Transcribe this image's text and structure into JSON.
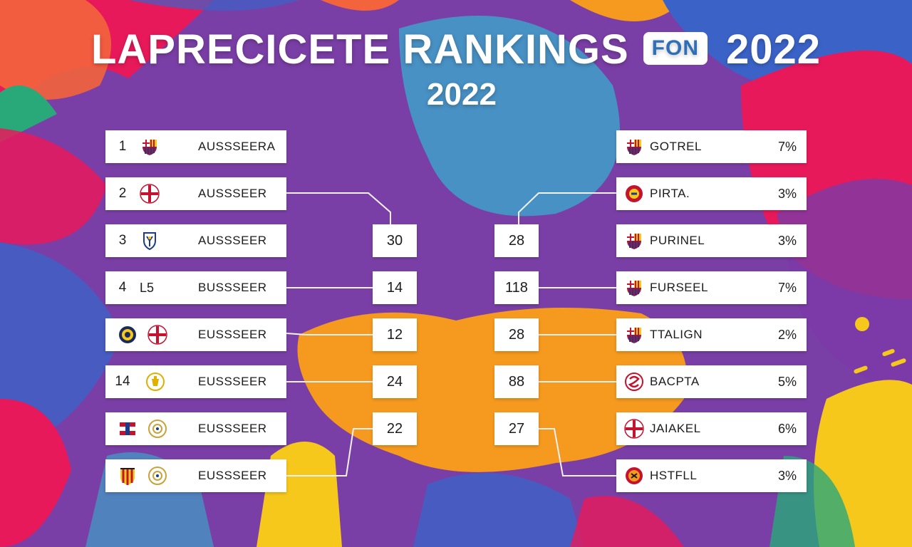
{
  "title": {
    "main": "LAPRECICETE RANKINGS",
    "badge": "FON",
    "year": "2022"
  },
  "subtitle": "2022",
  "colors": {
    "background": "#7a3fa6",
    "panel": "#ffffff",
    "text": "#1c1c1c",
    "accent_orange": "#f59a1e",
    "accent_pink": "#e8195a",
    "accent_blue": "#3b63c7",
    "accent_yellow": "#f7c81c"
  },
  "left_rows": [
    {
      "rank": "1",
      "abbr": "",
      "crest": "barca-crest-icon",
      "name": "AUSSSEERA"
    },
    {
      "rank": "2",
      "abbr": "",
      "crest": "red-cross-crest-icon",
      "name": "AUSSSEER"
    },
    {
      "rank": "3",
      "abbr": "",
      "crest": "blue-shield-crest-icon",
      "name": "AUSSSEER"
    },
    {
      "rank": "4",
      "abbr": "L5",
      "crest": "",
      "name": "BUSSSEER"
    },
    {
      "rank": "",
      "abbr": "",
      "crest": "navy-round-crest-icon",
      "crest2": "red-cross-crest-icon",
      "name": "EUSSSEER"
    },
    {
      "rank": "14",
      "abbr": "",
      "crest": "gold-crest-icon",
      "name": "EUSSSEER"
    },
    {
      "rank": "",
      "abbr": "",
      "crest": "red-blue-shield-icon",
      "crest2": "gold-wreath-crest-icon",
      "name": "EUSSSEER"
    },
    {
      "rank": "",
      "abbr": "",
      "crest": "red-yellow-stripes-icon",
      "crest2": "gold-wreath-crest-icon",
      "name": "EUSSSEER"
    }
  ],
  "mid_left_scores": [
    "30",
    "14",
    "12",
    "24",
    "22"
  ],
  "mid_right_scores": [
    "28",
    "118",
    "28",
    "88",
    "27"
  ],
  "right_rows": [
    {
      "crest": "barca-crest-icon",
      "name": "GOTREL",
      "pct": "7%"
    },
    {
      "crest": "red-round-crest-icon",
      "name": "PIRTA.",
      "pct": "3%"
    },
    {
      "crest": "barca-crest-icon",
      "name": "PURINEL",
      "pct": "3%"
    },
    {
      "crest": "barca-crest-icon",
      "name": "FURSEEL",
      "pct": "7%"
    },
    {
      "crest": "barca-crest-icon",
      "name": "TTALIGN",
      "pct": "2%"
    },
    {
      "crest": "red-swirl-crest-icon",
      "name": "BACPTA",
      "pct": "5%"
    },
    {
      "crest": "red-cross-crest-icon",
      "name": "JAIAKEL",
      "pct": "6%"
    },
    {
      "crest": "red-orange-round-crest-icon",
      "name": "HSTFLL",
      "pct": "3%"
    }
  ]
}
